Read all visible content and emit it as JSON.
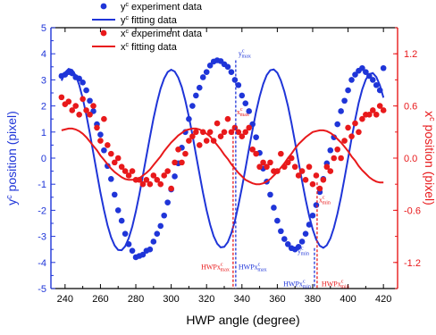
{
  "chart_data": {
    "type": "scatter",
    "xlabel": "HWP angle (degree)",
    "ylabel_left": {
      "base": "y",
      "sup": "c",
      "rest": " position (pixel)"
    },
    "ylabel_right": {
      "base": "x",
      "sup": "c",
      "rest": " position (pixel)"
    },
    "xlim": [
      232,
      428
    ],
    "ylim_left": [
      -5,
      5
    ],
    "ylim_right": [
      -1.5,
      1.5
    ],
    "x_ticks": [
      "240",
      "260",
      "280",
      "300",
      "320",
      "340",
      "360",
      "380",
      "400",
      "420"
    ],
    "y_left_ticks": [
      "-5",
      "-4",
      "-3",
      "-2",
      "-1",
      "0",
      "1",
      "2",
      "3",
      "4",
      "5"
    ],
    "y_right_ticks": [
      "-1.2",
      "-0.6",
      "0.0",
      "0.6",
      "1.2"
    ],
    "colors": {
      "y": "#1f35d8",
      "x": "#e8191b",
      "axis": "#000000"
    },
    "legend": {
      "position": "top-left",
      "items": [
        {
          "base": "y",
          "sup": "c",
          "rest": " experiment data"
        },
        {
          "base": "y",
          "sup": "c",
          "rest": " fitting data"
        },
        {
          "base": "x",
          "sup": "c",
          "rest": " experiment data"
        },
        {
          "base": "x",
          "sup": "c",
          "rest": " fitting data"
        }
      ]
    },
    "series": [
      {
        "name": "yc experiment data",
        "axis": "left",
        "x": [
          238,
          240,
          242,
          244,
          246,
          248,
          250,
          252,
          254,
          256,
          258,
          260,
          262,
          264,
          266,
          268,
          270,
          272,
          274,
          276,
          278,
          280,
          282,
          284,
          286,
          288,
          290,
          292,
          294,
          296,
          298,
          300,
          302,
          304,
          306,
          308,
          310,
          312,
          314,
          316,
          318,
          320,
          322,
          324,
          326,
          328,
          330,
          332,
          334,
          336,
          338,
          340,
          342,
          344,
          346,
          348,
          350,
          352,
          354,
          356,
          358,
          360,
          362,
          364,
          366,
          368,
          370,
          372,
          374,
          376,
          378,
          380,
          382,
          384,
          386,
          388,
          390,
          392,
          394,
          396,
          398,
          400,
          402,
          404,
          406,
          408,
          410,
          412,
          414,
          416,
          418,
          420
        ],
        "y": [
          3.15,
          3.2,
          3.3,
          3.25,
          3.1,
          3.05,
          2.9,
          2.6,
          2.2,
          1.8,
          1.3,
          0.9,
          0.3,
          -0.3,
          -0.8,
          -1.4,
          -2.0,
          -2.4,
          -2.9,
          -3.3,
          -3.55,
          -3.8,
          -3.75,
          -3.7,
          -3.55,
          -3.5,
          -3.2,
          -2.9,
          -2.6,
          -2.2,
          -1.7,
          -1.2,
          -0.7,
          -0.2,
          0.4,
          1.0,
          1.5,
          2.0,
          2.4,
          2.7,
          3.1,
          3.3,
          3.55,
          3.7,
          3.75,
          3.72,
          3.6,
          3.5,
          3.3,
          3.0,
          2.8,
          2.4,
          2.1,
          1.8,
          1.3,
          0.8,
          0.2,
          -0.4,
          -0.9,
          -1.4,
          -1.9,
          -2.4,
          -2.8,
          -3.1,
          -3.3,
          -3.45,
          -3.5,
          -3.4,
          -3.2,
          -2.9,
          -2.55,
          -2.2,
          -1.8,
          -1.3,
          -0.8,
          -0.2,
          0.3,
          0.8,
          1.3,
          1.8,
          2.2,
          2.6,
          3.0,
          3.2,
          3.35,
          3.45,
          3.3,
          3.15,
          3.0,
          2.8,
          2.6,
          3.45
        ]
      },
      {
        "name": "yc fitting data",
        "axis": "left",
        "x": [
          238,
          240,
          242,
          244,
          246,
          248,
          250,
          252,
          254,
          256,
          258,
          260,
          262,
          264,
          266,
          268,
          270,
          272,
          274,
          276,
          278,
          280,
          282,
          284,
          286,
          288,
          290,
          292,
          294,
          296,
          298,
          300,
          302,
          304,
          306,
          308,
          310,
          312,
          314,
          316,
          318,
          320,
          322,
          324,
          326,
          328,
          330,
          332,
          334,
          336,
          338,
          340,
          342,
          344,
          346,
          348,
          350,
          352,
          354,
          356,
          358,
          360,
          362,
          364,
          366,
          368,
          370,
          372,
          374,
          376,
          378,
          380,
          382,
          384,
          386,
          388,
          390,
          392,
          394,
          396,
          398,
          400,
          402,
          404,
          406,
          408,
          410,
          412,
          414,
          416,
          418,
          420
        ],
        "y": [
          2.97,
          3.28,
          3.42,
          3.38,
          3.17,
          2.8,
          2.29,
          1.66,
          0.95,
          0.19,
          -0.58,
          -1.32,
          -1.99,
          -2.57,
          -3.03,
          -3.35,
          -3.52,
          -3.53,
          -3.38,
          -3.07,
          -2.62,
          -2.05,
          -1.39,
          -0.67,
          0.08,
          0.82,
          1.52,
          2.14,
          2.66,
          3.05,
          3.3,
          3.39,
          3.32,
          3.09,
          2.72,
          2.21,
          1.59,
          0.89,
          0.14,
          -0.61,
          -1.33,
          -1.99,
          -2.55,
          -2.99,
          -3.28,
          -3.42,
          -3.4,
          -3.22,
          -2.88,
          -2.41,
          -1.81,
          -1.13,
          -0.39,
          0.36,
          1.09,
          1.77,
          2.36,
          2.84,
          3.18,
          3.37,
          3.4,
          3.27,
          2.98,
          2.55,
          2.0,
          1.35,
          0.62,
          -0.13,
          -0.88,
          -1.59,
          -2.21,
          -2.73,
          -3.12,
          -3.36,
          -3.44,
          -3.34,
          -3.08,
          -2.67,
          -2.13,
          -1.49,
          -0.77,
          -0.01,
          0.75,
          1.47,
          2.11,
          2.63,
          3.01,
          3.22,
          3.26,
          3.11,
          2.79,
          2.32
        ]
      },
      {
        "name": "xc experiment data",
        "axis": "right",
        "x": [
          238,
          240,
          242,
          244,
          246,
          248,
          250,
          252,
          254,
          256,
          258,
          260,
          262,
          264,
          266,
          268,
          270,
          272,
          274,
          276,
          278,
          280,
          282,
          284,
          286,
          288,
          290,
          292,
          294,
          296,
          298,
          300,
          302,
          304,
          306,
          308,
          310,
          312,
          314,
          316,
          318,
          320,
          322,
          324,
          326,
          328,
          330,
          332,
          334,
          336,
          338,
          340,
          342,
          344,
          346,
          348,
          350,
          352,
          354,
          356,
          358,
          360,
          362,
          364,
          366,
          368,
          370,
          372,
          374,
          376,
          378,
          380,
          382,
          384,
          386,
          388,
          390,
          392,
          394,
          396,
          398,
          400,
          402,
          404,
          406,
          408,
          410,
          412,
          414,
          416,
          418,
          420
        ],
        "y": [
          0.7,
          0.62,
          0.65,
          0.55,
          0.6,
          0.5,
          0.68,
          0.55,
          0.5,
          0.6,
          0.35,
          0.2,
          0.45,
          0.15,
          0.05,
          -0.05,
          0.0,
          -0.1,
          -0.15,
          -0.2,
          -0.15,
          -0.25,
          -0.25,
          -0.3,
          -0.25,
          -0.3,
          -0.2,
          -0.25,
          -0.3,
          -0.2,
          -0.15,
          -0.35,
          -0.05,
          0.1,
          -0.05,
          0.05,
          0.2,
          0.25,
          0.3,
          0.15,
          0.3,
          0.2,
          0.3,
          0.2,
          0.4,
          0.25,
          0.3,
          0.45,
          0.3,
          0.35,
          0.3,
          0.25,
          0.3,
          0.35,
          0.1,
          0.05,
          -0.1,
          -0.05,
          -0.1,
          -0.05,
          -0.15,
          -0.15,
          0.05,
          -0.1,
          -0.05,
          0.0,
          -0.1,
          -0.2,
          -0.15,
          -0.25,
          -0.1,
          -0.3,
          -0.2,
          -0.35,
          -0.25,
          -0.1,
          -0.15,
          0.0,
          0.1,
          0.0,
          0.2,
          0.35,
          0.25,
          0.4,
          0.3,
          0.45,
          0.5,
          0.5,
          0.55,
          0.5,
          0.6,
          0.55
        ]
      },
      {
        "name": "xc fitting data",
        "axis": "right",
        "x": [
          238,
          240,
          242,
          244,
          246,
          248,
          250,
          252,
          254,
          256,
          258,
          260,
          262,
          264,
          266,
          268,
          270,
          272,
          274,
          276,
          278,
          280,
          282,
          284,
          286,
          288,
          290,
          292,
          294,
          296,
          298,
          300,
          302,
          304,
          306,
          308,
          310,
          312,
          314,
          316,
          318,
          320,
          322,
          324,
          326,
          328,
          330,
          332,
          334,
          336,
          338,
          340,
          342,
          344,
          346,
          348,
          350,
          352,
          354,
          356,
          358,
          360,
          362,
          364,
          366,
          368,
          370,
          372,
          374,
          376,
          378,
          380,
          382,
          384,
          386,
          388,
          390,
          392,
          394,
          396,
          398,
          400,
          402,
          404,
          406,
          408,
          410,
          412,
          414,
          416,
          418,
          420
        ],
        "y": [
          0.32,
          0.33,
          0.34,
          0.34,
          0.33,
          0.31,
          0.28,
          0.24,
          0.19,
          0.14,
          0.09,
          0.03,
          -0.02,
          -0.07,
          -0.12,
          -0.16,
          -0.19,
          -0.22,
          -0.24,
          -0.25,
          -0.25,
          -0.24,
          -0.23,
          -0.2,
          -0.17,
          -0.13,
          -0.08,
          -0.03,
          0.02,
          0.08,
          0.13,
          0.18,
          0.22,
          0.26,
          0.29,
          0.32,
          0.33,
          0.34,
          0.34,
          0.33,
          0.31,
          0.28,
          0.25,
          0.2,
          0.15,
          0.1,
          0.04,
          -0.01,
          -0.07,
          -0.12,
          -0.17,
          -0.21,
          -0.25,
          -0.27,
          -0.29,
          -0.3,
          -0.3,
          -0.29,
          -0.27,
          -0.24,
          -0.2,
          -0.16,
          -0.11,
          -0.06,
          0.0,
          0.05,
          0.11,
          0.16,
          0.2,
          0.24,
          0.27,
          0.3,
          0.31,
          0.32,
          0.32,
          0.31,
          0.29,
          0.26,
          0.22,
          0.18,
          0.13,
          0.08,
          0.02,
          -0.03,
          -0.09,
          -0.14,
          -0.18,
          -0.22,
          -0.25,
          -0.27,
          -0.28,
          -0.28
        ]
      }
    ],
    "annotations": [
      {
        "id": "ymax",
        "color": "#1f35d8",
        "x": 336.5,
        "base": "y",
        "sub": "max",
        "sup": "c"
      },
      {
        "id": "xmax",
        "color": "#e8191b",
        "x": 335,
        "base": "x",
        "sub": "max",
        "sup": "c"
      },
      {
        "id": "ymin",
        "color": "#1f35d8",
        "x": 381,
        "base": "y",
        "sub": "min",
        "sup": "c"
      },
      {
        "id": "xmin",
        "color": "#e8191b",
        "x": 382.5,
        "base": "x",
        "sub": "min",
        "sup": "c"
      },
      {
        "id": "hwp_xmax",
        "color": "#e8191b",
        "base": "HWPx",
        "sub": "max",
        "sup": "c"
      },
      {
        "id": "hwp_ymax",
        "color": "#1f35d8",
        "base": "HWPx",
        "sub": "max",
        "sup": "c"
      },
      {
        "id": "hwp_ymin",
        "color": "#1f35d8",
        "base": "HWPx",
        "sub": "min",
        "sup": "c"
      },
      {
        "id": "hwp_xmin",
        "color": "#e8191b",
        "base": "HWPx",
        "sub": "min",
        "sup": "c"
      }
    ]
  }
}
